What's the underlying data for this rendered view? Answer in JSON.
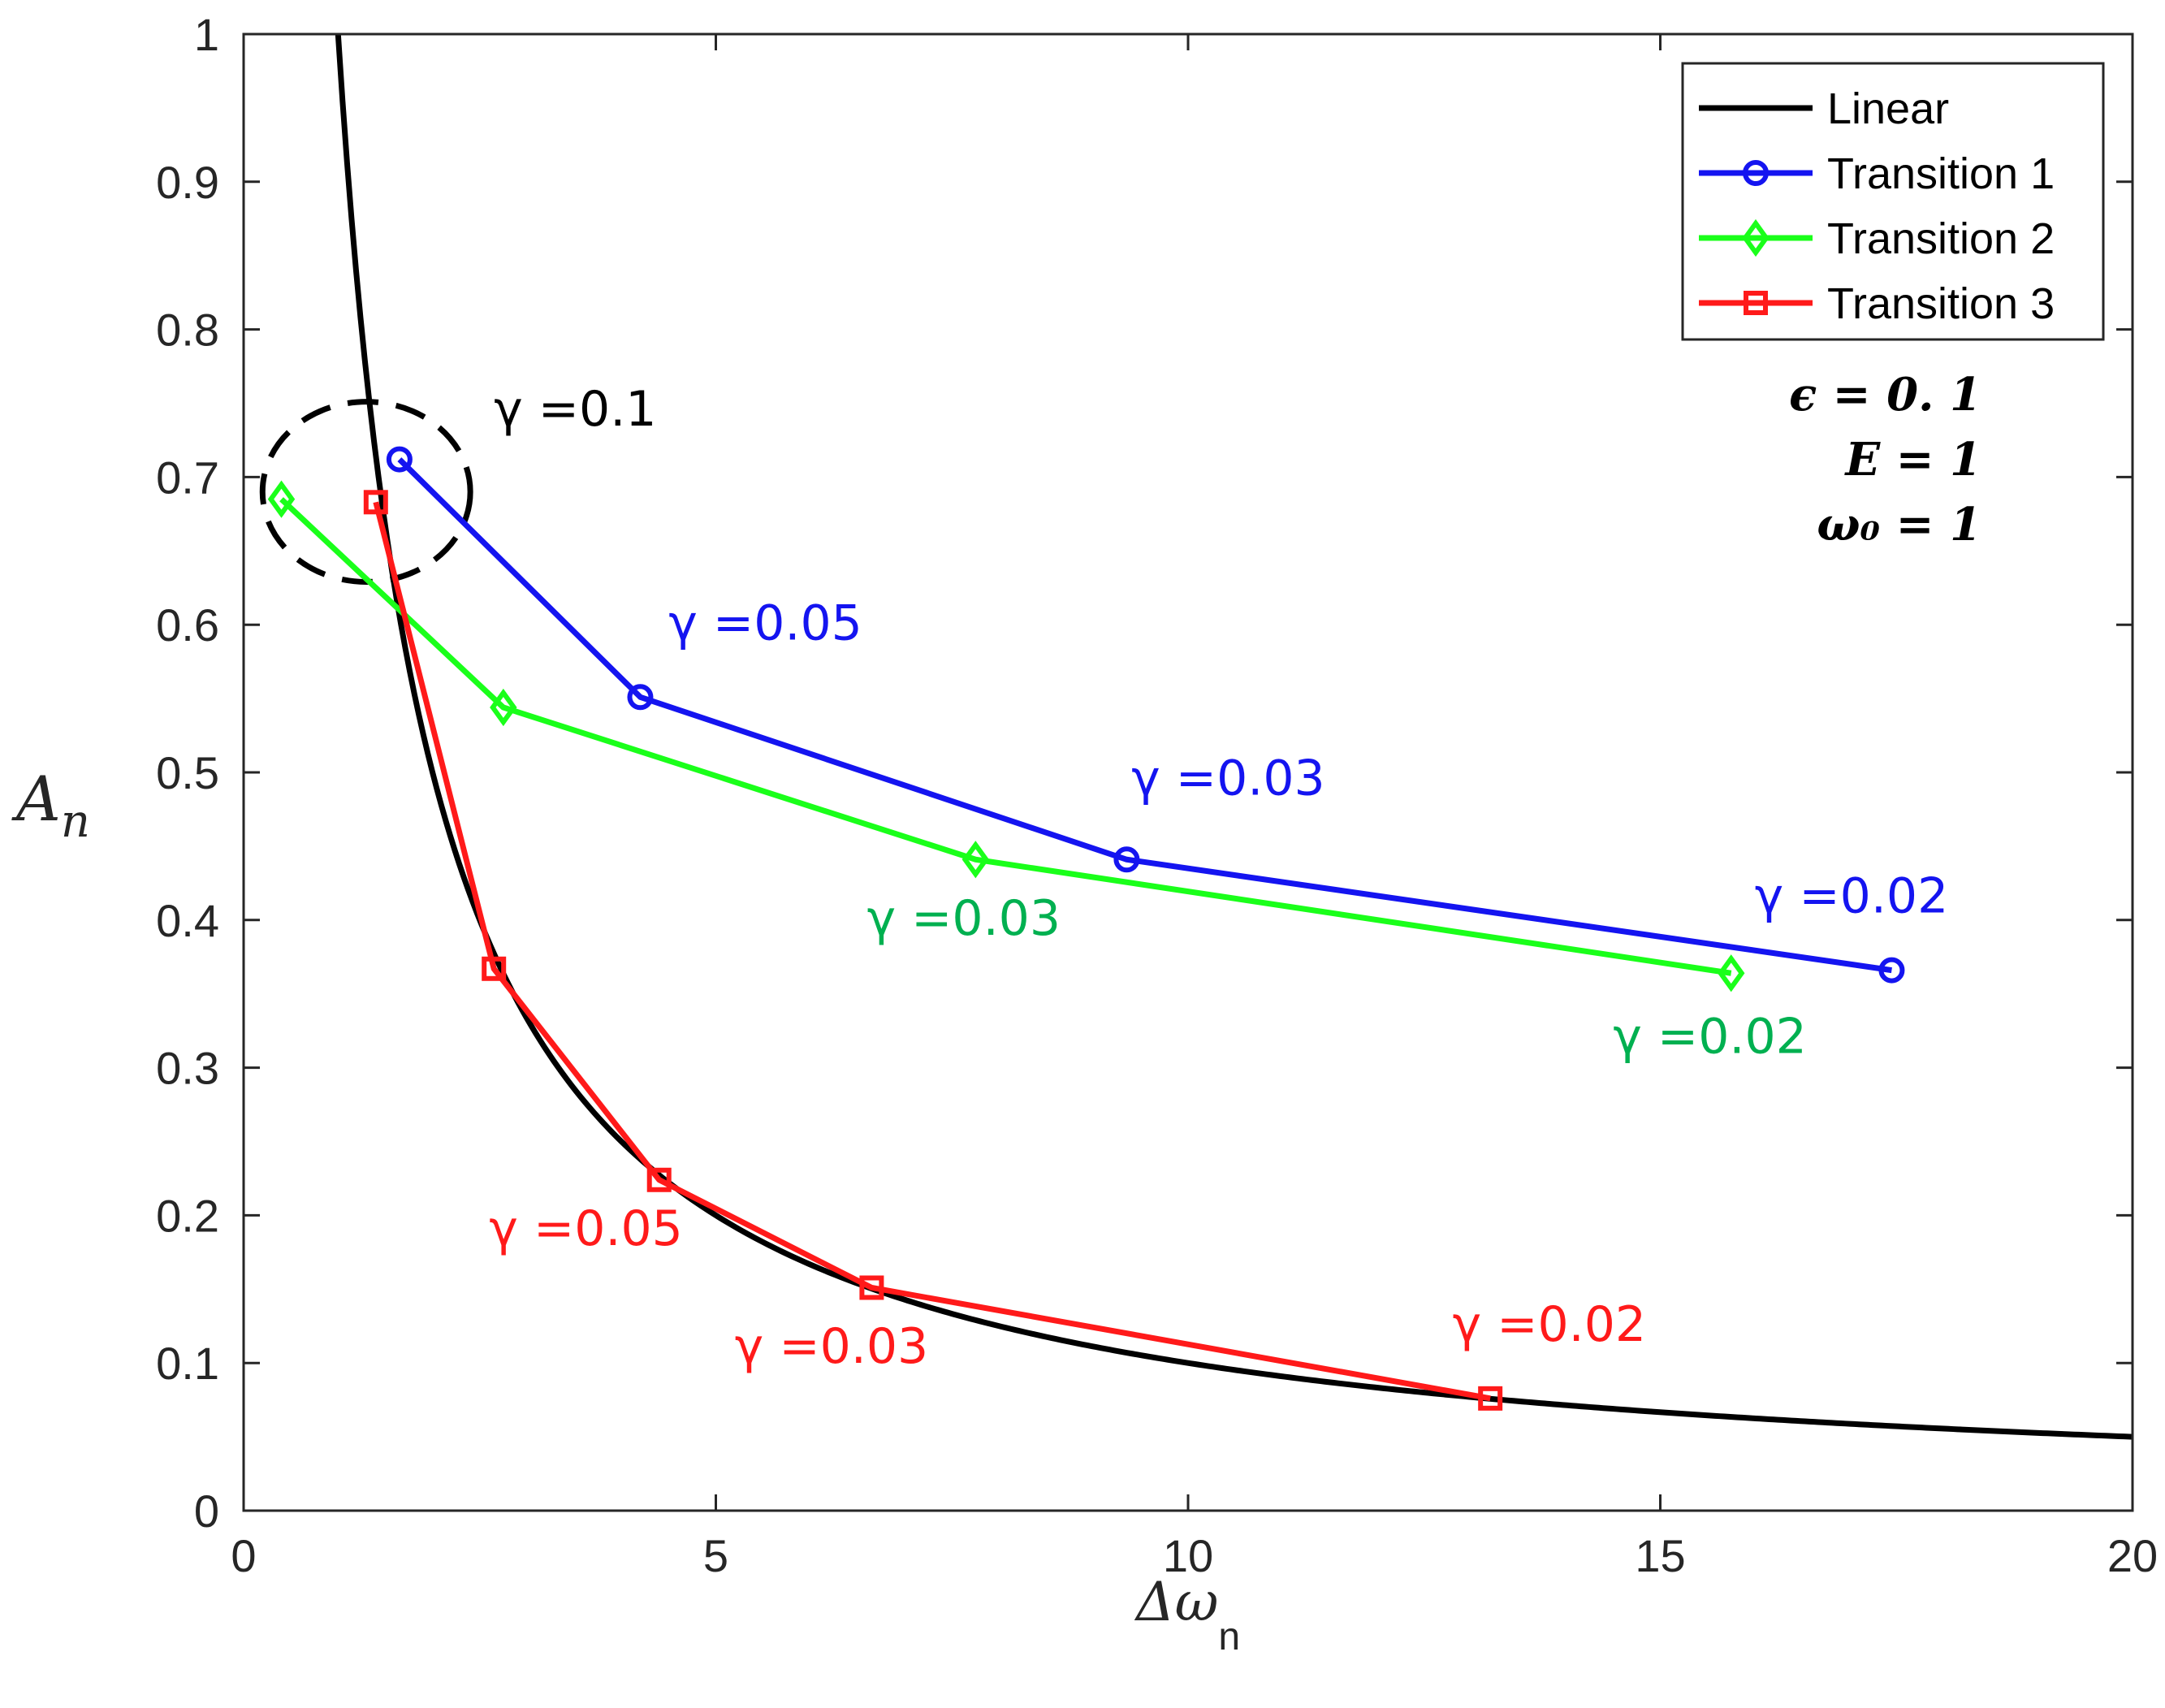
{
  "chart_data": {
    "type": "line",
    "title": "",
    "xlabel": "Δω",
    "xlabel_subscript": "n",
    "ylabel": "A",
    "ylabel_subscript": "n",
    "xlim": [
      0,
      20
    ],
    "ylim": [
      0,
      1
    ],
    "xticks": [
      0,
      5,
      10,
      15,
      20
    ],
    "yticks": [
      0,
      0.1,
      0.2,
      0.3,
      0.4,
      0.5,
      0.6,
      0.7,
      0.8,
      0.9,
      1
    ],
    "grid": false,
    "legend_position": "top-right",
    "colors": {
      "Linear": "#000000",
      "Transition 1": "#1414f0",
      "Transition 2": "#1aff1a",
      "Transition 3": "#ff1a1a",
      "green_label": "#00b050"
    },
    "series": [
      {
        "name": "Linear",
        "kind": "curve",
        "formula": "A = 1 / Δω",
        "x_range": [
          1.0,
          20
        ]
      },
      {
        "name": "Transition 1",
        "marker": "circle",
        "x": [
          1.65,
          4.2,
          9.35,
          17.45
        ],
        "y": [
          0.712,
          0.551,
          0.441,
          0.366
        ]
      },
      {
        "name": "Transition 2",
        "marker": "diamond",
        "x": [
          0.4,
          2.75,
          7.75,
          15.75
        ],
        "y": [
          0.685,
          0.544,
          0.441,
          0.364
        ]
      },
      {
        "name": "Transition 3",
        "marker": "square",
        "x": [
          1.4,
          2.65,
          4.4,
          6.65,
          13.2
        ],
        "y": [
          0.683,
          0.367,
          0.224,
          0.151,
          0.076
        ]
      }
    ],
    "annotations": [
      {
        "text": "γ =0.1",
        "color": "#000000",
        "x": 2.65,
        "y": 0.735
      },
      {
        "text": "γ =0.05",
        "color": "#1414f0",
        "x": 4.5,
        "y": 0.59
      },
      {
        "text": "γ =0.03",
        "color": "#1414f0",
        "x": 9.4,
        "y": 0.485
      },
      {
        "text": "γ =0.02",
        "color": "#1414f0",
        "x": 16.0,
        "y": 0.405
      },
      {
        "text": "γ =0.03",
        "color": "#00b050",
        "x": 6.6,
        "y": 0.39
      },
      {
        "text": "γ =0.02",
        "color": "#00b050",
        "x": 14.5,
        "y": 0.31
      },
      {
        "text": "γ =0.05",
        "color": "#ff1a1a",
        "x": 2.6,
        "y": 0.18
      },
      {
        "text": "γ =0.03",
        "color": "#ff1a1a",
        "x": 5.2,
        "y": 0.1
      },
      {
        "text": "γ =0.02",
        "color": "#ff1a1a",
        "x": 12.8,
        "y": 0.115
      }
    ],
    "highlight_ellipse": {
      "label": "γ =0.1 region",
      "cx": 1.3,
      "cy": 0.69,
      "rx": 1.1,
      "ry": 0.061
    },
    "parameters": [
      "ϵ = 0. 1",
      "E = 1",
      "ω₀ = 1"
    ]
  }
}
